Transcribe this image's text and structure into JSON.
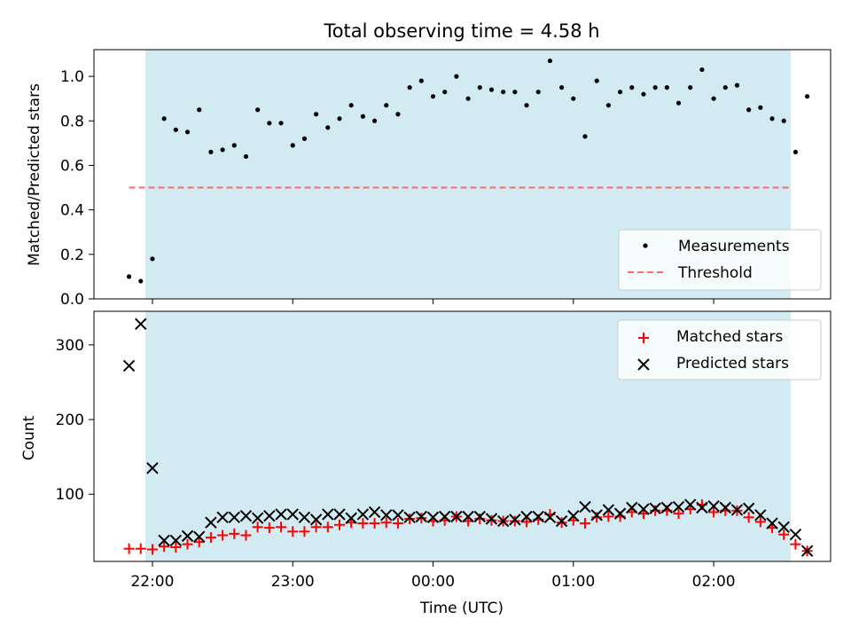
{
  "colors": {
    "band": "#add8e6",
    "threshold": "#ff6b6b",
    "matched": "#ff0000",
    "predicted": "#000000",
    "measurements": "#000000"
  },
  "chart_data": [
    {
      "type": "scatter",
      "title": "Total observing time = 4.58 h",
      "xlabel": "",
      "ylabel": "Matched/Predicted stars",
      "xlim": [
        "21:35",
        "02:50"
      ],
      "ylim": [
        0,
        1.12
      ],
      "yticks": [
        "0.0",
        "0.2",
        "0.4",
        "0.6",
        "0.8",
        "1.0"
      ],
      "ytick_values": [
        0.0,
        0.2,
        0.4,
        0.6,
        0.8,
        1.0
      ],
      "xticks_values": [
        "22:00",
        "23:00",
        "00:00",
        "01:00",
        "02:00"
      ],
      "observing_window": [
        "21:57",
        "02:33"
      ],
      "threshold": {
        "name": "Threshold",
        "y": 0.5,
        "x": [
          "21:50",
          "02:33"
        ],
        "style": "dashed"
      },
      "legend": {
        "placement": "lower-right",
        "entries": [
          "Measurements",
          "Threshold"
        ]
      },
      "series": [
        {
          "name": "Measurements",
          "marker": "dot",
          "x": [
            "21:50",
            "21:55",
            "22:00",
            "22:05",
            "22:10",
            "22:15",
            "22:20",
            "22:25",
            "22:30",
            "22:35",
            "22:40",
            "22:45",
            "22:50",
            "22:55",
            "23:00",
            "23:05",
            "23:10",
            "23:15",
            "23:20",
            "23:25",
            "23:30",
            "23:35",
            "23:40",
            "23:45",
            "23:50",
            "23:55",
            "00:00",
            "00:05",
            "00:10",
            "00:15",
            "00:20",
            "00:25",
            "00:30",
            "00:35",
            "00:40",
            "00:45",
            "00:50",
            "00:55",
            "01:00",
            "01:05",
            "01:10",
            "01:15",
            "01:20",
            "01:25",
            "01:30",
            "01:35",
            "01:40",
            "01:45",
            "01:50",
            "01:55",
            "02:00",
            "02:05",
            "02:10",
            "02:15",
            "02:20",
            "02:25",
            "02:30",
            "02:35",
            "02:40"
          ],
          "y": [
            0.1,
            0.08,
            0.18,
            0.81,
            0.76,
            0.75,
            0.85,
            0.66,
            0.67,
            0.69,
            0.64,
            0.85,
            0.79,
            0.79,
            0.69,
            0.72,
            0.83,
            0.77,
            0.81,
            0.87,
            0.82,
            0.8,
            0.87,
            0.83,
            0.95,
            0.98,
            0.91,
            0.93,
            1.0,
            0.9,
            0.95,
            0.94,
            0.93,
            0.93,
            0.87,
            0.93,
            1.07,
            0.95,
            0.9,
            0.73,
            0.98,
            0.87,
            0.93,
            0.95,
            0.92,
            0.95,
            0.95,
            0.88,
            0.95,
            1.03,
            0.9,
            0.95,
            0.96,
            0.85,
            0.86,
            0.81,
            0.8,
            0.66,
            0.91
          ]
        }
      ]
    },
    {
      "type": "scatter",
      "title": "",
      "xlabel": "Time (UTC)",
      "ylabel": "Count",
      "xlim": [
        "21:35",
        "02:50"
      ],
      "ylim": [
        10,
        345
      ],
      "yticks": [
        "100",
        "200",
        "300"
      ],
      "ytick_values": [
        100,
        200,
        300
      ],
      "xticks": [
        "22:00",
        "23:00",
        "00:00",
        "01:00",
        "02:00"
      ],
      "observing_window": [
        "21:57",
        "02:33"
      ],
      "legend": {
        "placement": "upper-right",
        "entries": [
          "Matched stars",
          "Predicted stars"
        ]
      },
      "series": [
        {
          "name": "Matched stars",
          "marker": "plus",
          "x": [
            "21:50",
            "21:55",
            "22:00",
            "22:05",
            "22:10",
            "22:15",
            "22:20",
            "22:25",
            "22:30",
            "22:35",
            "22:40",
            "22:45",
            "22:50",
            "22:55",
            "23:00",
            "23:05",
            "23:10",
            "23:15",
            "23:20",
            "23:25",
            "23:30",
            "23:35",
            "23:40",
            "23:45",
            "23:50",
            "23:55",
            "00:00",
            "00:05",
            "00:10",
            "00:15",
            "00:20",
            "00:25",
            "00:30",
            "00:35",
            "00:40",
            "00:45",
            "00:50",
            "00:55",
            "01:00",
            "01:05",
            "01:10",
            "01:15",
            "01:20",
            "01:25",
            "01:30",
            "01:35",
            "01:40",
            "01:45",
            "01:50",
            "01:55",
            "02:00",
            "02:05",
            "02:10",
            "02:15",
            "02:20",
            "02:25",
            "02:30",
            "02:35",
            "02:40"
          ],
          "y": [
            27,
            27,
            26,
            30,
            29,
            33,
            36,
            42,
            45,
            47,
            45,
            56,
            55,
            56,
            50,
            50,
            56,
            56,
            59,
            62,
            61,
            61,
            62,
            61,
            67,
            68,
            64,
            65,
            70,
            64,
            67,
            65,
            64,
            64,
            63,
            66,
            73,
            62,
            65,
            61,
            69,
            70,
            70,
            76,
            74,
            78,
            78,
            74,
            80,
            86,
            76,
            78,
            78,
            69,
            63,
            55,
            46,
            33,
            24
          ]
        },
        {
          "name": "Predicted stars",
          "marker": "x",
          "x": [
            "21:50",
            "21:55",
            "22:00",
            "22:05",
            "22:10",
            "22:15",
            "22:20",
            "22:25",
            "22:30",
            "22:35",
            "22:40",
            "22:45",
            "22:50",
            "22:55",
            "23:00",
            "23:05",
            "23:10",
            "23:15",
            "23:20",
            "23:25",
            "23:30",
            "23:35",
            "23:40",
            "23:45",
            "23:50",
            "23:55",
            "00:00",
            "00:05",
            "00:10",
            "00:15",
            "00:20",
            "00:25",
            "00:30",
            "00:35",
            "00:40",
            "00:45",
            "00:50",
            "00:55",
            "01:00",
            "01:05",
            "01:10",
            "01:15",
            "01:20",
            "01:25",
            "01:30",
            "01:35",
            "01:40",
            "01:45",
            "01:50",
            "01:55",
            "02:00",
            "02:05",
            "02:10",
            "02:15",
            "02:20",
            "02:25",
            "02:30",
            "02:35",
            "02:40"
          ],
          "y": [
            272,
            328,
            135,
            38,
            38,
            44,
            43,
            62,
            69,
            69,
            71,
            68,
            71,
            73,
            73,
            69,
            66,
            73,
            73,
            68,
            73,
            76,
            72,
            72,
            69,
            70,
            69,
            70,
            70,
            70,
            70,
            67,
            64,
            66,
            70,
            70,
            69,
            64,
            71,
            83,
            72,
            79,
            74,
            82,
            80,
            81,
            82,
            83,
            86,
            82,
            84,
            82,
            79,
            81,
            72,
            61,
            56,
            46,
            24
          ]
        }
      ]
    }
  ]
}
